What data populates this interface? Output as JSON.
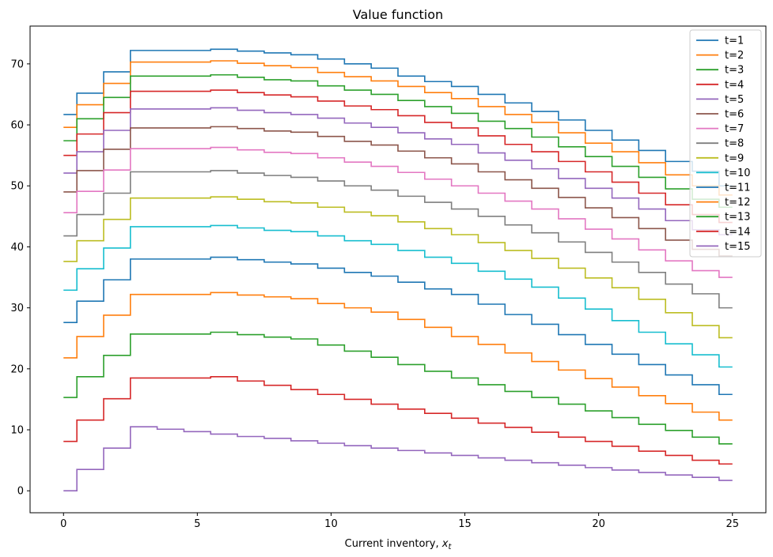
{
  "chart_data": {
    "type": "line",
    "step": true,
    "title": "Value function",
    "xlabel": "Current inventory, ",
    "xlabel_var": "x",
    "xlabel_sub": "t",
    "ylabel": "",
    "xlim": [
      -1.25,
      26.25
    ],
    "ylim": [
      -3.6,
      76.2
    ],
    "xticks": [
      0,
      5,
      10,
      15,
      20,
      25
    ],
    "yticks": [
      0,
      10,
      20,
      30,
      40,
      50,
      60,
      70
    ],
    "grid": false,
    "legend_position": "top-right",
    "x": [
      0,
      1,
      2,
      3,
      4,
      5,
      6,
      7,
      8,
      9,
      10,
      11,
      12,
      13,
      14,
      15,
      16,
      17,
      18,
      19,
      20,
      21,
      22,
      23,
      24,
      25
    ],
    "series": [
      {
        "name": "t=1",
        "color": "#1f77b4",
        "values": [
          61.7,
          65.2,
          68.7,
          72.2,
          72.2,
          72.2,
          72.4,
          72.1,
          71.8,
          71.5,
          70.8,
          70.0,
          69.3,
          68.0,
          67.1,
          66.3,
          65.0,
          63.6,
          62.2,
          60.8,
          59.1,
          57.5,
          55.8,
          54.0,
          52.4,
          50.0
        ]
      },
      {
        "name": "t=2",
        "color": "#ff7f0e",
        "values": [
          59.6,
          63.3,
          66.8,
          70.3,
          70.3,
          70.3,
          70.5,
          70.1,
          69.7,
          69.4,
          68.6,
          67.9,
          67.2,
          66.3,
          65.3,
          64.3,
          63.0,
          61.7,
          60.4,
          58.7,
          57.0,
          55.6,
          53.8,
          51.8,
          50.0,
          48.5
        ]
      },
      {
        "name": "t=3",
        "color": "#2ca02c",
        "values": [
          57.4,
          61.0,
          64.5,
          68.0,
          68.0,
          68.0,
          68.2,
          67.8,
          67.4,
          67.2,
          66.4,
          65.7,
          65.0,
          64.0,
          63.0,
          61.9,
          60.6,
          59.4,
          58.0,
          56.4,
          54.8,
          53.2,
          51.4,
          49.5,
          47.8,
          46.5
        ]
      },
      {
        "name": "t=4",
        "color": "#d62728",
        "values": [
          55.0,
          58.5,
          62.0,
          65.5,
          65.5,
          65.5,
          65.7,
          65.3,
          64.9,
          64.6,
          63.9,
          63.1,
          62.5,
          61.5,
          60.4,
          59.5,
          58.2,
          56.8,
          55.6,
          54.0,
          52.3,
          50.6,
          48.8,
          46.9,
          45.3,
          44.0
        ]
      },
      {
        "name": "t=5",
        "color": "#9467bd",
        "values": [
          52.1,
          55.6,
          59.1,
          62.6,
          62.6,
          62.6,
          62.8,
          62.4,
          62.0,
          61.7,
          61.1,
          60.3,
          59.6,
          58.7,
          57.7,
          56.8,
          55.4,
          54.2,
          52.8,
          51.2,
          49.6,
          48.0,
          46.2,
          44.3,
          42.8,
          42.0
        ]
      },
      {
        "name": "t=6",
        "color": "#8c564b",
        "values": [
          49.0,
          52.5,
          56.0,
          59.5,
          59.5,
          59.5,
          59.7,
          59.4,
          59.0,
          58.8,
          58.1,
          57.3,
          56.7,
          55.7,
          54.6,
          53.6,
          52.3,
          51.0,
          49.6,
          48.1,
          46.4,
          44.8,
          43.0,
          41.1,
          39.6,
          38.5
        ]
      },
      {
        "name": "t=7",
        "color": "#e377c2",
        "values": [
          45.6,
          49.1,
          52.6,
          56.1,
          56.1,
          56.1,
          56.3,
          55.9,
          55.5,
          55.3,
          54.6,
          53.9,
          53.2,
          52.2,
          51.1,
          50.0,
          48.8,
          47.5,
          46.2,
          44.6,
          42.9,
          41.3,
          39.5,
          37.7,
          36.1,
          35.0
        ]
      },
      {
        "name": "t=8",
        "color": "#7f7f7f",
        "values": [
          41.8,
          45.3,
          48.8,
          52.3,
          52.3,
          52.3,
          52.5,
          52.1,
          51.7,
          51.4,
          50.8,
          50.0,
          49.3,
          48.3,
          47.3,
          46.2,
          45.0,
          43.6,
          42.3,
          40.8,
          39.1,
          37.5,
          35.8,
          33.9,
          32.3,
          30.0
        ]
      },
      {
        "name": "t=9",
        "color": "#bcbd22",
        "values": [
          37.6,
          41.0,
          44.5,
          48.0,
          48.0,
          48.0,
          48.2,
          47.8,
          47.4,
          47.2,
          46.5,
          45.7,
          45.1,
          44.1,
          43.0,
          42.0,
          40.7,
          39.4,
          38.1,
          36.5,
          34.9,
          33.3,
          31.4,
          29.2,
          27.1,
          25.1
        ]
      },
      {
        "name": "t=10",
        "color": "#17becf",
        "values": [
          32.9,
          36.4,
          39.8,
          43.3,
          43.3,
          43.3,
          43.5,
          43.1,
          42.7,
          42.5,
          41.8,
          41.0,
          40.4,
          39.4,
          38.3,
          37.3,
          36.0,
          34.7,
          33.4,
          31.6,
          29.8,
          27.9,
          26.0,
          24.1,
          22.3,
          20.3
        ]
      },
      {
        "name": "t=11",
        "color": "#1f77b4",
        "values": [
          27.6,
          31.1,
          34.6,
          38.0,
          38.0,
          38.0,
          38.3,
          37.9,
          37.5,
          37.2,
          36.5,
          35.8,
          35.2,
          34.2,
          33.1,
          32.2,
          30.6,
          28.9,
          27.3,
          25.6,
          24.0,
          22.4,
          20.7,
          19.0,
          17.4,
          15.8
        ]
      },
      {
        "name": "t=12",
        "color": "#ff7f0e",
        "values": [
          21.8,
          25.3,
          28.8,
          32.2,
          32.2,
          32.2,
          32.5,
          32.1,
          31.8,
          31.5,
          30.7,
          30.0,
          29.3,
          28.1,
          26.8,
          25.3,
          24.0,
          22.6,
          21.2,
          19.8,
          18.4,
          17.0,
          15.6,
          14.3,
          12.9,
          11.6
        ]
      },
      {
        "name": "t=13",
        "color": "#2ca02c",
        "values": [
          15.3,
          18.7,
          22.2,
          25.7,
          25.7,
          25.7,
          26.0,
          25.6,
          25.2,
          24.9,
          23.9,
          22.9,
          21.9,
          20.7,
          19.6,
          18.5,
          17.4,
          16.3,
          15.3,
          14.2,
          13.1,
          12.0,
          10.9,
          9.9,
          8.8,
          7.7
        ]
      },
      {
        "name": "t=14",
        "color": "#d62728",
        "values": [
          8.1,
          11.6,
          15.1,
          18.5,
          18.5,
          18.5,
          18.7,
          18.0,
          17.3,
          16.6,
          15.8,
          15.0,
          14.2,
          13.4,
          12.7,
          11.9,
          11.1,
          10.4,
          9.6,
          8.8,
          8.1,
          7.3,
          6.5,
          5.8,
          5.0,
          4.4
        ]
      },
      {
        "name": "t=15",
        "color": "#9467bd",
        "values": [
          0.0,
          3.5,
          7.0,
          10.5,
          10.1,
          9.7,
          9.3,
          8.9,
          8.6,
          8.2,
          7.8,
          7.4,
          7.0,
          6.6,
          6.2,
          5.8,
          5.4,
          5.0,
          4.6,
          4.2,
          3.8,
          3.4,
          3.0,
          2.6,
          2.2,
          1.7
        ]
      }
    ]
  }
}
